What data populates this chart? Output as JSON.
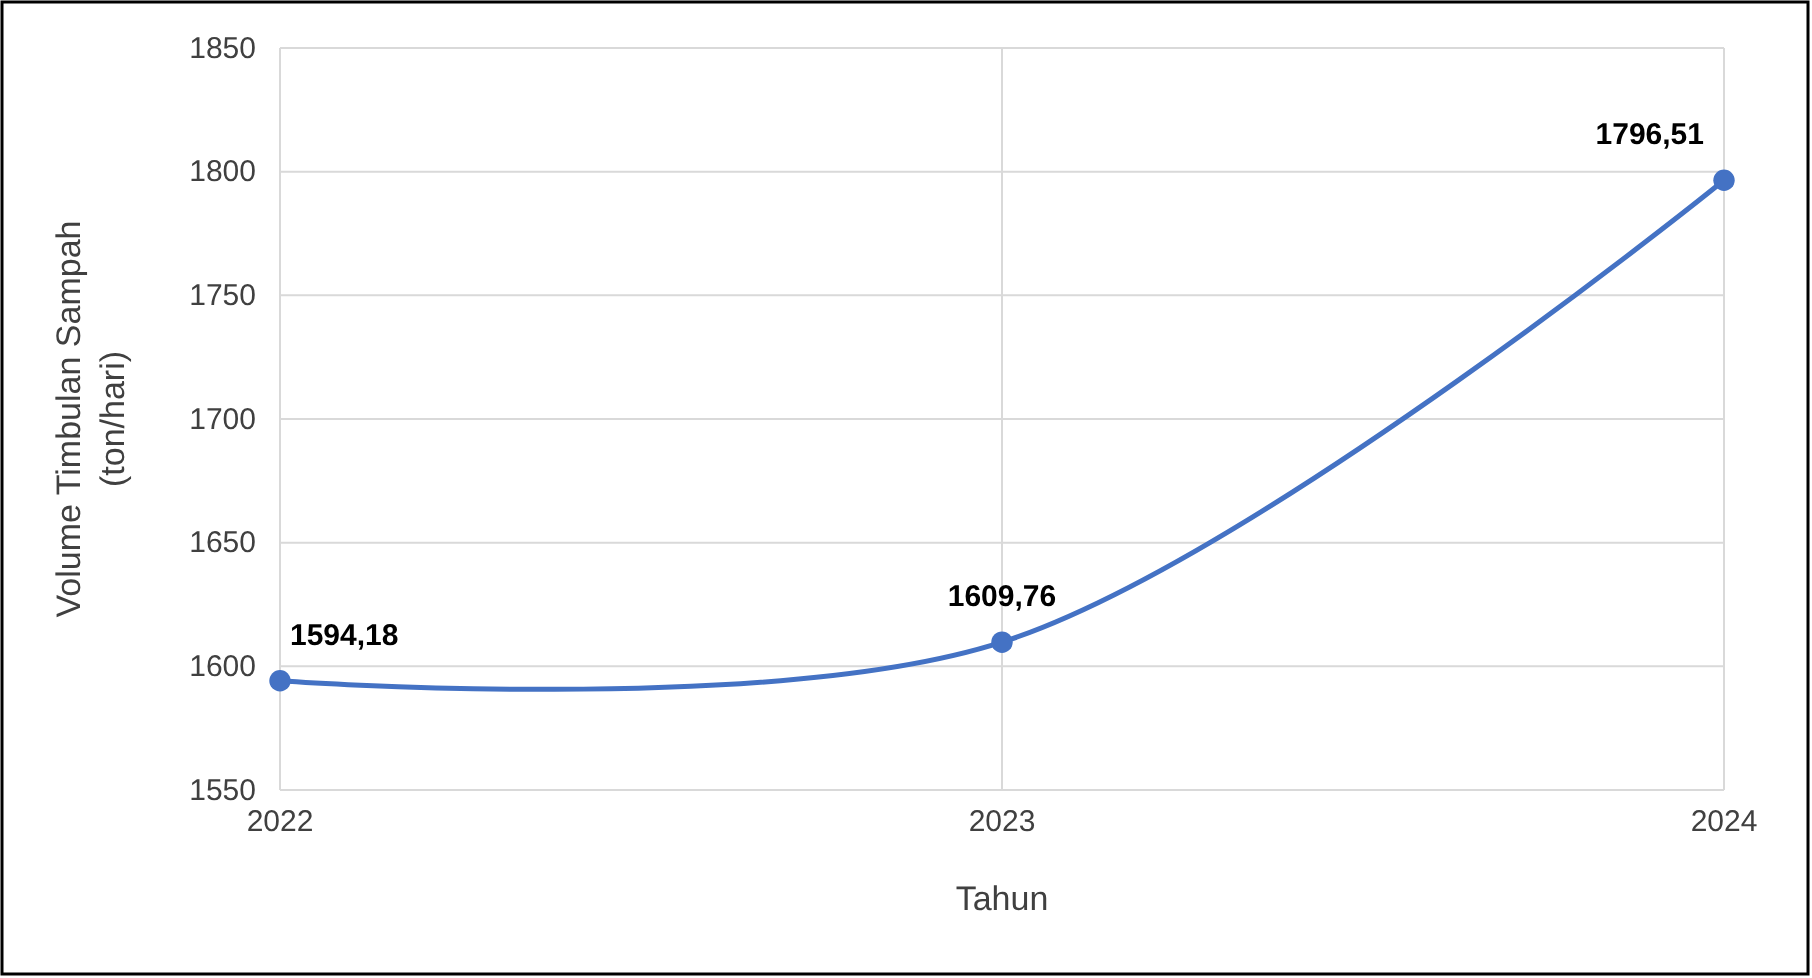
{
  "chart_data": {
    "type": "line",
    "xlabel": "Tahun",
    "ylabel": "Volume Timbulan Sampah\n(ton/hari)",
    "categories": [
      "2022",
      "2023",
      "2024"
    ],
    "series": [
      {
        "color": "#4472c4",
        "values": [
          1594.18,
          1609.76,
          1796.51
        ],
        "value_labels": [
          "1594,18",
          "1609,76",
          "1796,51"
        ]
      }
    ],
    "ylim": [
      1550,
      1850
    ],
    "yticks": [
      1550,
      1600,
      1650,
      1700,
      1750,
      1800,
      1850
    ],
    "grid": true,
    "marker": "circle",
    "line_style": "solid"
  }
}
